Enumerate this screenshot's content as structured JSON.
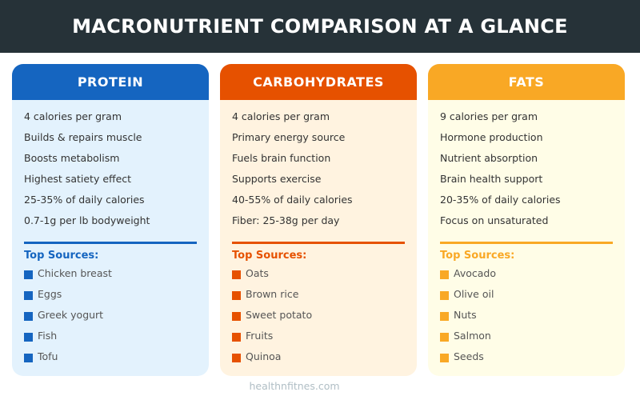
{
  "title": "MACRONUTRIENT COMPARISON AT A GLANCE",
  "sources_label": "Top Sources:",
  "footer": "healthnfitnes.com",
  "cards": [
    {
      "name": "PROTEIN",
      "accent": "#1565c0",
      "background": "#e3f2fd",
      "facts": [
        "4 calories per gram",
        "Builds & repairs muscle",
        "Boosts metabolism",
        "Highest satiety effect",
        "25-35% of daily calories",
        "0.7-1g per lb bodyweight"
      ],
      "sources": [
        "Chicken breast",
        "Eggs",
        "Greek yogurt",
        "Fish",
        "Tofu"
      ]
    },
    {
      "name": "CARBOHYDRATES",
      "accent": "#e65100",
      "background": "#fff3e0",
      "facts": [
        "4 calories per gram",
        "Primary energy source",
        "Fuels brain function",
        "Supports exercise",
        "40-55% of daily calories",
        "Fiber: 25-38g per day"
      ],
      "sources": [
        "Oats",
        "Brown rice",
        "Sweet potato",
        "Fruits",
        "Quinoa"
      ]
    },
    {
      "name": "FATS",
      "accent": "#f9a825",
      "background": "#fffde7",
      "facts": [
        "9 calories per gram",
        "Hormone production",
        "Nutrient absorption",
        "Brain health support",
        "20-35% of daily calories",
        "Focus on unsaturated"
      ],
      "sources": [
        "Avocado",
        "Olive oil",
        "Nuts",
        "Salmon",
        "Seeds"
      ]
    }
  ]
}
